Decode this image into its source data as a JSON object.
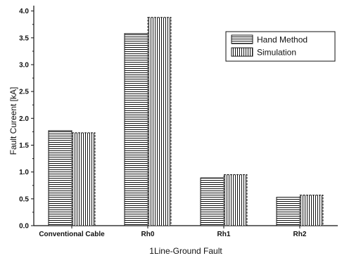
{
  "chart_data": {
    "type": "bar",
    "title": "",
    "xlabel": "1Line-Ground Fault",
    "ylabel": "Fault Cureent [kA]",
    "categories": [
      "Conventional Cable",
      "Rh0",
      "Rh1",
      "Rh2"
    ],
    "series": [
      {
        "name": "Hand Method",
        "values": [
          1.77,
          3.58,
          0.89,
          0.53
        ],
        "pattern": "horizontal-hatch"
      },
      {
        "name": "Simulation",
        "values": [
          1.73,
          3.88,
          0.95,
          0.57
        ],
        "pattern": "vertical-hatch"
      }
    ],
    "ylim": [
      0,
      4.1
    ],
    "yticks": [
      0.0,
      0.5,
      1.0,
      1.5,
      2.0,
      2.5,
      3.0,
      3.5,
      4.0
    ],
    "ytick_labels": [
      "0.0",
      "0.5",
      "1.0",
      "1.5",
      "2.0",
      "2.5",
      "3.0",
      "3.5",
      "4.0"
    ],
    "grid": false,
    "legend_position": "top-right",
    "colors": {
      "ink": "#111111",
      "background": "#ffffff"
    }
  }
}
